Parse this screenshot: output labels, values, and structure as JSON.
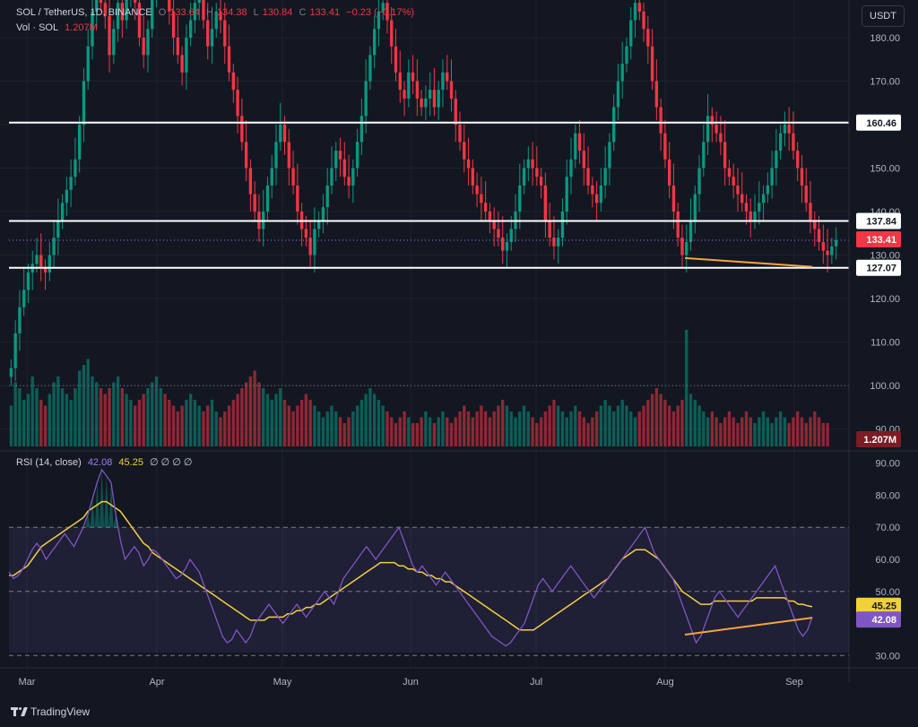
{
  "legend": {
    "symbol": "SOL / TetherUS, 1D, BINANCE",
    "open_label": "O",
    "open": "133.64",
    "high_label": "H",
    "high": "134.38",
    "low_label": "L",
    "low": "130.84",
    "close_label": "C",
    "close": "133.41",
    "change": "−0.23 (−0.17%)",
    "vol_label": "Vol · SOL",
    "vol": "1.207M",
    "rsi_label": "RSI (14, close)",
    "rsi_value": "42.08",
    "rsi_ma_value": "45.25",
    "rsi_extra": "∅ ∅ ∅ ∅"
  },
  "currency": "USDT",
  "footer": {
    "brand": "TradingView"
  },
  "colors": {
    "background": "#131722",
    "up": "#089981",
    "down": "#f23645",
    "rsi": "#7e57c2",
    "rsi_ma": "#f2d03a",
    "trendline": "#f7a43b",
    "level_line": "#ffffff"
  },
  "chart_data": [
    {
      "type": "candlestick",
      "title": "SOL / TetherUS, 1D, BINANCE",
      "x_ticks": [
        "Mar",
        "Apr",
        "May",
        "Jun",
        "Jul",
        "Aug",
        "Sep"
      ],
      "y_ticks": [
        "180.00",
        "170.00",
        "160.00",
        "150.00",
        "140.00",
        "130.00",
        "120.00",
        "110.00",
        "100.00",
        "90.00"
      ],
      "ylim": [
        86,
        187
      ],
      "horizontal_levels": [
        160.46,
        137.84,
        127.07
      ],
      "level_labels": [
        "160.46",
        "137.84",
        "127.07"
      ],
      "last_price": 133.41,
      "last_price_label": "133.41",
      "dotted_levels": [
        133.41,
        100.0
      ],
      "trendline": {
        "from": [
          "Aug 5",
          129.3
        ],
        "to": [
          "Sep 4",
          127.3
        ]
      },
      "closes": [
        104,
        112,
        118,
        122,
        126,
        128,
        130,
        127,
        126,
        130,
        134,
        138,
        142,
        145,
        148,
        152,
        160,
        170,
        178,
        186,
        190,
        188,
        185,
        176,
        182,
        188,
        184,
        190,
        196,
        188,
        180,
        176,
        182,
        190,
        196,
        198,
        192,
        186,
        180,
        176,
        172,
        180,
        184,
        188,
        190,
        184,
        178,
        182,
        186,
        184,
        178,
        172,
        168,
        162,
        156,
        150,
        144,
        140,
        136,
        140,
        146,
        150,
        156,
        160,
        156,
        150,
        146,
        140,
        136,
        134,
        130,
        136,
        138,
        141,
        146,
        150,
        154,
        152,
        148,
        146,
        150,
        156,
        162,
        170,
        176,
        182,
        186,
        188,
        184,
        178,
        172,
        168,
        166,
        172,
        170,
        166,
        164,
        166,
        168,
        164,
        168,
        172,
        170,
        166,
        160,
        156,
        152,
        150,
        146,
        144,
        142,
        140,
        138,
        136,
        134,
        131,
        133,
        136,
        140,
        146,
        150,
        152,
        150,
        148,
        146,
        138,
        134,
        132,
        134,
        140,
        148,
        152,
        158,
        154,
        150,
        146,
        144,
        142,
        146,
        150,
        156,
        164,
        170,
        174,
        178,
        184,
        188,
        186,
        182,
        178,
        170,
        164,
        158,
        152,
        146,
        140,
        134,
        130,
        133,
        138,
        144,
        150,
        156,
        162,
        160,
        158,
        156,
        150,
        148,
        146,
        144,
        142,
        140,
        138,
        140,
        142,
        144,
        146,
        150,
        154,
        158,
        160,
        158,
        154,
        150,
        146,
        142,
        138,
        136,
        133,
        131,
        130,
        132,
        133.41
      ],
      "volume_last": "1.207M",
      "volume_levels": [
        0.35,
        0.55,
        0.5,
        0.4,
        0.45,
        0.6,
        0.5,
        0.4,
        0.35,
        0.45,
        0.55,
        0.6,
        0.5,
        0.45,
        0.4,
        0.5,
        0.65,
        0.7,
        0.75,
        0.6,
        0.55,
        0.5,
        0.45,
        0.5,
        0.55,
        0.6,
        0.5,
        0.45,
        0.4,
        0.35,
        0.4,
        0.45,
        0.5,
        0.55,
        0.6,
        0.5,
        0.45,
        0.4,
        0.35,
        0.3,
        0.35,
        0.4,
        0.45,
        0.4,
        0.35,
        0.3,
        0.35,
        0.4,
        0.3,
        0.25,
        0.3,
        0.35,
        0.4,
        0.45,
        0.5,
        0.55,
        0.6,
        0.65,
        0.55,
        0.5,
        0.45,
        0.4,
        0.45,
        0.5,
        0.4,
        0.35,
        0.3,
        0.35,
        0.4,
        0.45,
        0.4,
        0.35,
        0.3,
        0.25,
        0.3,
        0.35,
        0.3,
        0.25,
        0.2,
        0.25,
        0.3,
        0.35,
        0.4,
        0.45,
        0.5,
        0.45,
        0.4,
        0.35,
        0.3,
        0.25,
        0.2,
        0.25,
        0.3,
        0.25,
        0.2,
        0.2,
        0.25,
        0.3,
        0.25,
        0.2,
        0.25,
        0.3,
        0.25,
        0.2,
        0.25,
        0.3,
        0.35,
        0.3,
        0.25,
        0.3,
        0.35,
        0.3,
        0.25,
        0.3,
        0.35,
        0.4,
        0.35,
        0.3,
        0.25,
        0.3,
        0.35,
        0.3,
        0.25,
        0.2,
        0.25,
        0.3,
        0.35,
        0.4,
        0.35,
        0.3,
        0.25,
        0.3,
        0.35,
        0.3,
        0.25,
        0.2,
        0.25,
        0.3,
        0.35,
        0.4,
        0.35,
        0.3,
        0.35,
        0.4,
        0.35,
        0.3,
        0.25,
        0.3,
        0.35,
        0.4,
        0.45,
        0.5,
        0.45,
        0.4,
        0.35,
        0.3,
        0.35,
        0.4,
        1.0,
        0.45,
        0.4,
        0.35,
        0.3,
        0.25,
        0.3,
        0.25,
        0.2,
        0.25,
        0.3,
        0.25,
        0.2,
        0.25,
        0.3,
        0.25,
        0.2,
        0.25,
        0.3,
        0.25,
        0.2,
        0.25,
        0.3,
        0.25,
        0.2,
        0.25,
        0.3,
        0.25,
        0.2,
        0.25,
        0.3,
        0.25,
        0.2,
        0.2
      ]
    },
    {
      "type": "line",
      "title": "RSI (14, close)",
      "y_ticks": [
        "90.00",
        "80.00",
        "70.00",
        "60.00",
        "50.00",
        "40.00",
        "30.00"
      ],
      "ylim": [
        27,
        93
      ],
      "bands": [
        70,
        50,
        30
      ],
      "series": [
        {
          "name": "RSI",
          "last_label": "42.08",
          "values": [
            56,
            54,
            55,
            57,
            60,
            63,
            65,
            63,
            60,
            62,
            64,
            66,
            68,
            66,
            64,
            67,
            70,
            74,
            79,
            84,
            88,
            86,
            84,
            74,
            66,
            60,
            62,
            64,
            62,
            58,
            60,
            63,
            62,
            60,
            58,
            56,
            54,
            55,
            57,
            60,
            58,
            56,
            52,
            48,
            44,
            40,
            36,
            34,
            35,
            38,
            36,
            34,
            36,
            40,
            42,
            44,
            46,
            44,
            42,
            40,
            42,
            44,
            46,
            44,
            42,
            44,
            46,
            48,
            50,
            48,
            46,
            50,
            54,
            56,
            58,
            60,
            62,
            64,
            62,
            60,
            62,
            64,
            66,
            68,
            70,
            66,
            62,
            58,
            56,
            58,
            56,
            54,
            52,
            54,
            56,
            54,
            52,
            50,
            48,
            46,
            44,
            42,
            40,
            38,
            36,
            35,
            34,
            33,
            34,
            36,
            38,
            40,
            44,
            48,
            52,
            54,
            52,
            50,
            52,
            54,
            56,
            58,
            56,
            54,
            52,
            50,
            48,
            50,
            52,
            54,
            56,
            58,
            60,
            62,
            64,
            66,
            68,
            70,
            66,
            62,
            60,
            58,
            56,
            54,
            50,
            46,
            42,
            38,
            34,
            36,
            40,
            44,
            48,
            50,
            48,
            46,
            44,
            42,
            44,
            46,
            48,
            50,
            52,
            54,
            56,
            58,
            54,
            50,
            46,
            42,
            38,
            36,
            38,
            42
          ]
        },
        {
          "name": "RSI-based MA",
          "last_label": "45.25",
          "values": [
            55,
            55,
            56,
            57,
            58,
            60,
            62,
            64,
            65,
            66,
            67,
            68,
            69,
            70,
            71,
            72,
            73,
            75,
            76,
            77,
            78,
            78,
            77,
            76,
            75,
            73,
            71,
            69,
            67,
            65,
            64,
            62,
            61,
            60,
            59,
            58,
            57,
            56,
            55,
            54,
            53,
            52,
            51,
            50,
            49,
            48,
            47,
            46,
            45,
            44,
            43,
            42,
            41,
            41,
            41,
            41,
            42,
            42,
            42,
            42,
            43,
            43,
            44,
            44,
            45,
            45,
            46,
            46,
            47,
            48,
            49,
            50,
            51,
            52,
            53,
            54,
            55,
            56,
            57,
            58,
            59,
            59,
            59,
            59,
            58,
            58,
            57,
            57,
            56,
            56,
            55,
            55,
            54,
            54,
            53,
            53,
            52,
            51,
            50,
            49,
            48,
            47,
            46,
            45,
            44,
            43,
            42,
            41,
            40,
            39,
            38,
            38,
            38,
            38,
            39,
            40,
            41,
            42,
            43,
            44,
            45,
            46,
            47,
            48,
            49,
            50,
            51,
            52,
            53,
            54,
            56,
            58,
            60,
            61,
            62,
            63,
            63,
            63,
            62,
            61,
            60,
            58,
            56,
            54,
            52,
            50,
            49,
            48,
            47,
            46,
            46,
            46,
            47,
            47,
            47,
            47,
            47,
            47,
            47,
            47,
            47,
            48,
            48,
            48,
            48,
            48,
            48,
            48,
            47,
            47,
            46,
            46,
            45.5,
            45.25
          ]
        }
      ],
      "trendline": {
        "from": [
          "Aug 5",
          36.5
        ],
        "to": [
          "Sep 4",
          41.8
        ]
      }
    }
  ]
}
